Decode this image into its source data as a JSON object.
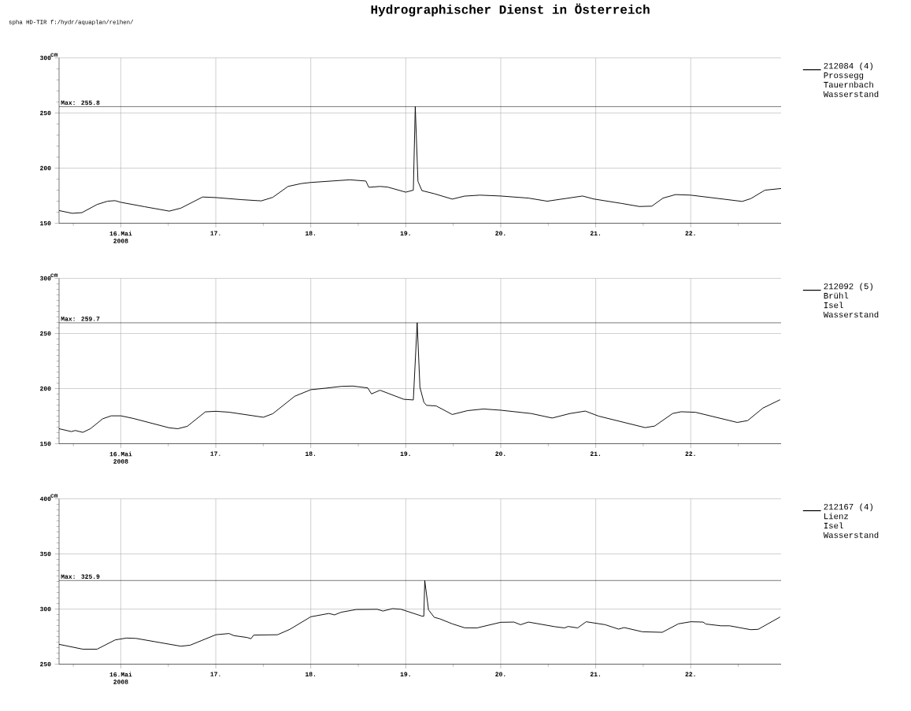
{
  "chart_data": [
    {
      "type": "line",
      "title": "Hydrographischer Dienst in Österreich",
      "annotations": [
        "spha HD-TIR f:/hydr/aquaplan/reihen/"
      ],
      "ylabel": "cm",
      "grid": true,
      "legend": "right",
      "xlim": [
        "2008-05-15T08:24",
        "2008-05-22T22:50"
      ],
      "xticks": [
        {
          "value": "2008-05-15T12:00",
          "label": null
        },
        {
          "value": "2008-05-16",
          "label": "16.Mai 2008"
        },
        {
          "value": "2008-05-16T12:00",
          "label": null
        },
        {
          "value": "2008-05-17",
          "label": "17."
        },
        {
          "value": "2008-05-17T12:00",
          "label": null
        },
        {
          "value": "2008-05-18",
          "label": "18."
        },
        {
          "value": "2008-05-18T12:00",
          "label": null
        },
        {
          "value": "2008-05-19",
          "label": "19."
        },
        {
          "value": "2008-05-19T12:00",
          "label": null
        },
        {
          "value": "2008-05-20",
          "label": "20."
        },
        {
          "value": "2008-05-20T12:00",
          "label": null
        },
        {
          "value": "2008-05-21",
          "label": "21."
        },
        {
          "value": "2008-05-21T12:00",
          "label": null
        },
        {
          "value": "2008-05-22",
          "label": "22."
        },
        {
          "value": "2008-05-22T12:00",
          "label": null
        }
      ],
      "ylim": [
        150,
        300
      ],
      "yticks": [
        150,
        {
          "value": 160,
          "label": null
        },
        {
          "value": 170,
          "label": null
        },
        {
          "value": 180,
          "label": null
        },
        {
          "value": 190,
          "label": null
        },
        200,
        {
          "value": 210,
          "label": null
        },
        {
          "value": 220,
          "label": null
        },
        {
          "value": 230,
          "label": null
        },
        {
          "value": 240,
          "label": null
        },
        250,
        {
          "value": 260,
          "label": null
        },
        {
          "value": 270,
          "label": null
        },
        {
          "value": 280,
          "label": null
        },
        {
          "value": 290,
          "label": null
        },
        300
      ],
      "ref_lines": [
        {
          "axis": "y",
          "value": 255.8,
          "label": "Max: 255.8",
          "color": "#000000"
        }
      ],
      "series": [
        {
          "name": "212084 (4)\nProssegg\nTauernbach\nWasserstand",
          "color": "#000000",
          "x": [
            "2008-05-15T08:24",
            "2008-05-15T11:45",
            "2008-05-15T14:10",
            "2008-05-15T18:00",
            "2008-05-15T20:40",
            "2008-05-15T22:35",
            "2008-05-16T00:00",
            "2008-05-16T06:00",
            "2008-05-16T12:15",
            "2008-05-16T15:10",
            "2008-05-16T20:40",
            "2008-05-17T00:00",
            "2008-05-17T06:30",
            "2008-05-17T11:30",
            "2008-05-17T14:24",
            "2008-05-17T18:15",
            "2008-05-17T21:35",
            "2008-05-18T00:00",
            "2008-05-18T05:15",
            "2008-05-18T09:50",
            "2008-05-18T13:55",
            "2008-05-18T14:40",
            "2008-05-18T17:30",
            "2008-05-18T19:25",
            "2008-05-19T00:00",
            "2008-05-19T01:55",
            "2008-05-19T02:24",
            "2008-05-19T03:05",
            "2008-05-19T04:05",
            "2008-05-19T07:12",
            "2008-05-19T11:45",
            "2008-05-19T14:50",
            "2008-05-19T18:45",
            "2008-05-20T00:00",
            "2008-05-20T07:00",
            "2008-05-20T11:45",
            "2008-05-20T20:40",
            "2008-05-20T23:30",
            "2008-05-21T06:30",
            "2008-05-21T11:00",
            "2008-05-21T14:10",
            "2008-05-21T17:00",
            "2008-05-21T20:10",
            "2008-05-22T00:00",
            "2008-05-22T13:00",
            "2008-05-22T15:10",
            "2008-05-22T18:45",
            "2008-05-22T22:50"
          ],
          "values": [
            161.5,
            159,
            159.6,
            167,
            170,
            170.5,
            169,
            165,
            161,
            163.7,
            173.8,
            173.3,
            171.4,
            170.3,
            173.5,
            183.4,
            186,
            187,
            188.3,
            189.4,
            188.3,
            182.6,
            183.4,
            182.8,
            178.2,
            180,
            255.8,
            188,
            179.6,
            176.8,
            171.9,
            174.6,
            175.5,
            174.7,
            172.8,
            170,
            174.7,
            172,
            168,
            165.2,
            165.5,
            172.8,
            176,
            175.5,
            169.8,
            172.3,
            180,
            181.5
          ]
        }
      ]
    },
    {
      "type": "line",
      "ylabel": "cm",
      "grid": true,
      "legend": "right",
      "xlim": [
        "2008-05-15T08:24",
        "2008-05-22T22:50"
      ],
      "xticks": [
        {
          "value": "2008-05-15T12:00",
          "label": null
        },
        {
          "value": "2008-05-16",
          "label": "16.Mai 2008"
        },
        {
          "value": "2008-05-16T12:00",
          "label": null
        },
        {
          "value": "2008-05-17",
          "label": "17."
        },
        {
          "value": "2008-05-17T12:00",
          "label": null
        },
        {
          "value": "2008-05-18",
          "label": "18."
        },
        {
          "value": "2008-05-18T12:00",
          "label": null
        },
        {
          "value": "2008-05-19",
          "label": "19."
        },
        {
          "value": "2008-05-19T12:00",
          "label": null
        },
        {
          "value": "2008-05-20",
          "label": "20."
        },
        {
          "value": "2008-05-20T12:00",
          "label": null
        },
        {
          "value": "2008-05-21",
          "label": "21."
        },
        {
          "value": "2008-05-21T12:00",
          "label": null
        },
        {
          "value": "2008-05-22",
          "label": "22."
        },
        {
          "value": "2008-05-22T12:00",
          "label": null
        }
      ],
      "ylim": [
        150,
        300
      ],
      "yticks": [
        150,
        {
          "value": 155,
          "label": null
        },
        {
          "value": 160,
          "label": null
        },
        {
          "value": 165,
          "label": null
        },
        {
          "value": 170,
          "label": null
        },
        {
          "value": 175,
          "label": null
        },
        {
          "value": 180,
          "label": null
        },
        {
          "value": 185,
          "label": null
        },
        {
          "value": 190,
          "label": null
        },
        {
          "value": 195,
          "label": null
        },
        200,
        {
          "value": 205,
          "label": null
        },
        {
          "value": 210,
          "label": null
        },
        {
          "value": 215,
          "label": null
        },
        {
          "value": 220,
          "label": null
        },
        {
          "value": 225,
          "label": null
        },
        {
          "value": 230,
          "label": null
        },
        {
          "value": 235,
          "label": null
        },
        {
          "value": 240,
          "label": null
        },
        {
          "value": 245,
          "label": null
        },
        250,
        {
          "value": 255,
          "label": null
        },
        {
          "value": 260,
          "label": null
        },
        {
          "value": 265,
          "label": null
        },
        {
          "value": 270,
          "label": null
        },
        {
          "value": 275,
          "label": null
        },
        {
          "value": 280,
          "label": null
        },
        {
          "value": 285,
          "label": null
        },
        {
          "value": 290,
          "label": null
        },
        {
          "value": 295,
          "label": null
        },
        300
      ],
      "ref_lines": [
        {
          "axis": "y",
          "value": 259.7,
          "label": "Max: 259.7",
          "color": "#000000"
        }
      ],
      "series": [
        {
          "name": "212092 (5)\nBrühl\nIsel\nWasserstand",
          "color": "#000000",
          "x": [
            "2008-05-15T08:24",
            "2008-05-15T11:30",
            "2008-05-15T12:30",
            "2008-05-15T14:24",
            "2008-05-15T16:19",
            "2008-05-15T19:25",
            "2008-05-15T21:35",
            "2008-05-16T00:00",
            "2008-05-16T03:05",
            "2008-05-16T12:15",
            "2008-05-16T14:24",
            "2008-05-16T16:48",
            "2008-05-16T21:22",
            "2008-05-17T00:00",
            "2008-05-17T03:20",
            "2008-05-17T12:00",
            "2008-05-17T14:24",
            "2008-05-17T19:55",
            "2008-05-18T00:00",
            "2008-05-18T03:50",
            "2008-05-18T07:40",
            "2008-05-18T10:35",
            "2008-05-18T14:24",
            "2008-05-18T15:20",
            "2008-05-18T16:35",
            "2008-05-18T17:30",
            "2008-05-18T23:30",
            "2008-05-19T01:55",
            "2008-05-19T02:53",
            "2008-05-19T03:35",
            "2008-05-19T04:35",
            "2008-05-19T05:15",
            "2008-05-19T07:40",
            "2008-05-19T11:45",
            "2008-05-19T15:36",
            "2008-05-19T19:40",
            "2008-05-20T00:00",
            "2008-05-20T07:40",
            "2008-05-20T13:00",
            "2008-05-20T17:31",
            "2008-05-20T21:22",
            "2008-05-21T00:45",
            "2008-05-21T12:29",
            "2008-05-21T14:53",
            "2008-05-21T19:26",
            "2008-05-21T21:35",
            "2008-05-22T01:12",
            "2008-05-22T11:45",
            "2008-05-22T14:24",
            "2008-05-22T18:14",
            "2008-05-22T22:35"
          ],
          "values": [
            163.6,
            161,
            162,
            160.3,
            163.6,
            172.6,
            175.3,
            175.3,
            173,
            164.4,
            163.6,
            165.8,
            178.9,
            179.4,
            178.6,
            174,
            177.2,
            193,
            199,
            200.4,
            202,
            202.3,
            200.6,
            195.2,
            197.1,
            198.5,
            190.3,
            189.7,
            259.7,
            201.2,
            187.6,
            184.8,
            184.3,
            176.5,
            180,
            181.5,
            180.4,
            177.4,
            173.3,
            177.4,
            179.6,
            175,
            164.6,
            166,
            177.4,
            179,
            178.5,
            169.3,
            171,
            182.3,
            189.9
          ]
        }
      ]
    },
    {
      "type": "line",
      "ylabel": "cm",
      "grid": true,
      "legend": "right",
      "xlim": [
        "2008-05-15T08:24",
        "2008-05-22T22:50"
      ],
      "xticks": [
        {
          "value": "2008-05-15T12:00",
          "label": null
        },
        {
          "value": "2008-05-16",
          "label": "16.Mai 2008"
        },
        {
          "value": "2008-05-16T12:00",
          "label": null
        },
        {
          "value": "2008-05-17",
          "label": "17."
        },
        {
          "value": "2008-05-17T12:00",
          "label": null
        },
        {
          "value": "2008-05-18",
          "label": "18."
        },
        {
          "value": "2008-05-18T12:00",
          "label": null
        },
        {
          "value": "2008-05-19",
          "label": "19."
        },
        {
          "value": "2008-05-19T12:00",
          "label": null
        },
        {
          "value": "2008-05-20",
          "label": "20."
        },
        {
          "value": "2008-05-20T12:00",
          "label": null
        },
        {
          "value": "2008-05-21",
          "label": "21."
        },
        {
          "value": "2008-05-21T12:00",
          "label": null
        },
        {
          "value": "2008-05-22",
          "label": "22."
        },
        {
          "value": "2008-05-22T12:00",
          "label": null
        }
      ],
      "ylim": [
        250,
        400
      ],
      "yticks": [
        250,
        {
          "value": 255,
          "label": null
        },
        {
          "value": 260,
          "label": null
        },
        {
          "value": 265,
          "label": null
        },
        {
          "value": 270,
          "label": null
        },
        {
          "value": 275,
          "label": null
        },
        {
          "value": 280,
          "label": null
        },
        {
          "value": 285,
          "label": null
        },
        {
          "value": 290,
          "label": null
        },
        {
          "value": 295,
          "label": null
        },
        300,
        {
          "value": 305,
          "label": null
        },
        {
          "value": 310,
          "label": null
        },
        {
          "value": 315,
          "label": null
        },
        {
          "value": 320,
          "label": null
        },
        {
          "value": 325,
          "label": null
        },
        {
          "value": 330,
          "label": null
        },
        {
          "value": 335,
          "label": null
        },
        {
          "value": 340,
          "label": null
        },
        {
          "value": 345,
          "label": null
        },
        350,
        {
          "value": 355,
          "label": null
        },
        {
          "value": 360,
          "label": null
        },
        {
          "value": 365,
          "label": null
        },
        {
          "value": 370,
          "label": null
        },
        {
          "value": 375,
          "label": null
        },
        {
          "value": 380,
          "label": null
        },
        {
          "value": 385,
          "label": null
        },
        {
          "value": 390,
          "label": null
        },
        {
          "value": 395,
          "label": null
        },
        400
      ],
      "ref_lines": [
        {
          "axis": "y",
          "value": 325.9,
          "label": "Max: 325.9",
          "color": "#000000"
        }
      ],
      "series": [
        {
          "name": "212167 (4)\nLienz\nIsel\nWasserstand",
          "color": "#000000",
          "x": [
            "2008-05-15T08:24",
            "2008-05-15T14:24",
            "2008-05-15T18:00",
            "2008-05-15T22:35",
            "2008-05-16T01:25",
            "2008-05-16T03:50",
            "2008-05-16T15:10",
            "2008-05-16T17:31",
            "2008-05-17T00:00",
            "2008-05-17T03:20",
            "2008-05-17T04:35",
            "2008-05-17T07:55",
            "2008-05-17T08:53",
            "2008-05-17T09:35",
            "2008-05-17T15:36",
            "2008-05-17T18:43",
            "2008-05-18T00:00",
            "2008-05-18T04:35",
            "2008-05-18T06:00",
            "2008-05-18T07:40",
            "2008-05-18T11:30",
            "2008-05-18T16:48",
            "2008-05-18T18:14",
            "2008-05-18T20:38",
            "2008-05-18T22:48",
            "2008-05-19T04:05",
            "2008-05-19T04:34",
            "2008-05-19T04:48",
            "2008-05-19T05:45",
            "2008-05-19T07:12",
            "2008-05-19T08:38",
            "2008-05-19T11:45",
            "2008-05-19T14:53",
            "2008-05-19T18:00",
            "2008-05-20T00:00",
            "2008-05-20T03:20",
            "2008-05-20T05:00",
            "2008-05-20T07:00",
            "2008-05-20T13:41",
            "2008-05-20T16:05",
            "2008-05-20T17:02",
            "2008-05-20T19:26",
            "2008-05-20T21:35",
            "2008-05-21T02:24",
            "2008-05-21T05:46",
            "2008-05-21T07:12",
            "2008-05-21T11:46",
            "2008-05-21T16:48",
            "2008-05-21T20:53",
            "2008-05-22T00:00",
            "2008-05-22T03:07",
            "2008-05-22T03:50",
            "2008-05-22T07:41",
            "2008-05-22T09:50",
            "2008-05-22T15:07",
            "2008-05-22T17:02",
            "2008-05-22T22:35"
          ],
          "values": [
            268,
            263.6,
            263.6,
            272,
            273.7,
            273.4,
            266.3,
            267.2,
            276.7,
            277.8,
            275.9,
            274.2,
            273.1,
            276.4,
            276.7,
            281.6,
            293,
            296,
            294.7,
            297.1,
            299.6,
            299.8,
            298.2,
            300.4,
            299.8,
            293.6,
            293.6,
            325.9,
            299.3,
            292.5,
            291.1,
            286.6,
            283,
            282.9,
            288,
            288.2,
            285.8,
            288.2,
            284,
            282.9,
            284.2,
            282.9,
            288.5,
            285.8,
            281.8,
            283.2,
            279.4,
            278.9,
            286.6,
            288.5,
            288.2,
            286.4,
            284.8,
            284.8,
            281.3,
            281.6,
            292.8
          ]
        }
      ]
    }
  ]
}
